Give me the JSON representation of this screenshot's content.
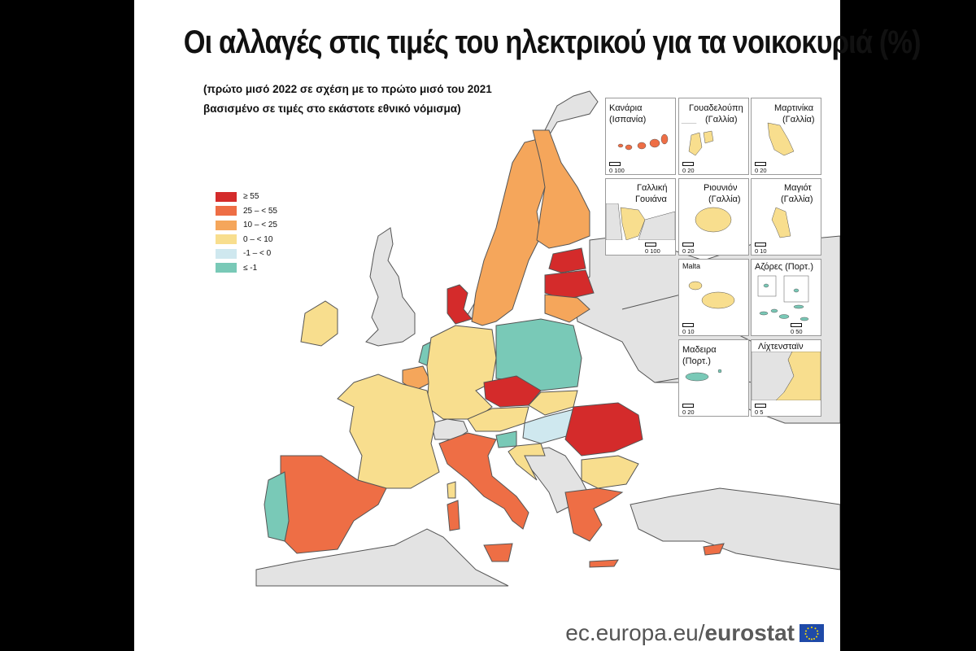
{
  "title": "Οι αλλαγές στις τιμές του ηλεκτρικού για τα νοικοκυριά (%)",
  "subtitle_line1": "(πρώτο μισό 2022 σε σχέση με το πρώτο μισό του 2021",
  "subtitle_line2": "βασισμένο σε τιμές στο εκάστοτε εθνικό νόμισμα)",
  "legend": [
    {
      "label": "≥ 55",
      "color": "#d42b2b"
    },
    {
      "label": "25 – < 55",
      "color": "#ee6e45"
    },
    {
      "label": "10 – < 25",
      "color": "#f5a65b"
    },
    {
      "label": "0 – < 10",
      "color": "#f8de8e"
    },
    {
      "label": "-1 – < 0",
      "color": "#cfe8ef"
    },
    {
      "label": "≤ -1",
      "color": "#79c9b7"
    }
  ],
  "insets": {
    "canarias": {
      "label1": "Κανάρια",
      "label2": "(Ισπανία)",
      "scale": "0  100"
    },
    "guadeloupe": {
      "label1": "Γουαδελούπη",
      "label2": "(Γαλλία)",
      "scale": "0  20"
    },
    "martinique": {
      "label1": "Μαρτινίκα",
      "label2": "(Γαλλία)",
      "scale": "0  20"
    },
    "guyane": {
      "label1": "Γαλλική",
      "label2": "Γουιάνα",
      "scale": "0  100"
    },
    "reunion": {
      "label1": "Ριουνιόν",
      "label2": "(Γαλλία)",
      "scale": "0  20"
    },
    "mayotte": {
      "label1": "Μαγιότ",
      "label2": "(Γαλλία)",
      "scale": "0  10"
    },
    "malta": {
      "label1": "Malta",
      "scale": "0  10"
    },
    "azores": {
      "label1": "Αζόρες (Πορτ.)",
      "scale": "0  50"
    },
    "madeira": {
      "label1": "Μαδειρα",
      "label2": "(Πορτ.)",
      "scale": "0  20"
    },
    "liechtenstein": {
      "label1": "Λίχτενσταϊν",
      "scale": "0  5"
    }
  },
  "footer": {
    "url": "ec.europa.eu/",
    "brand": "eurostat"
  }
}
